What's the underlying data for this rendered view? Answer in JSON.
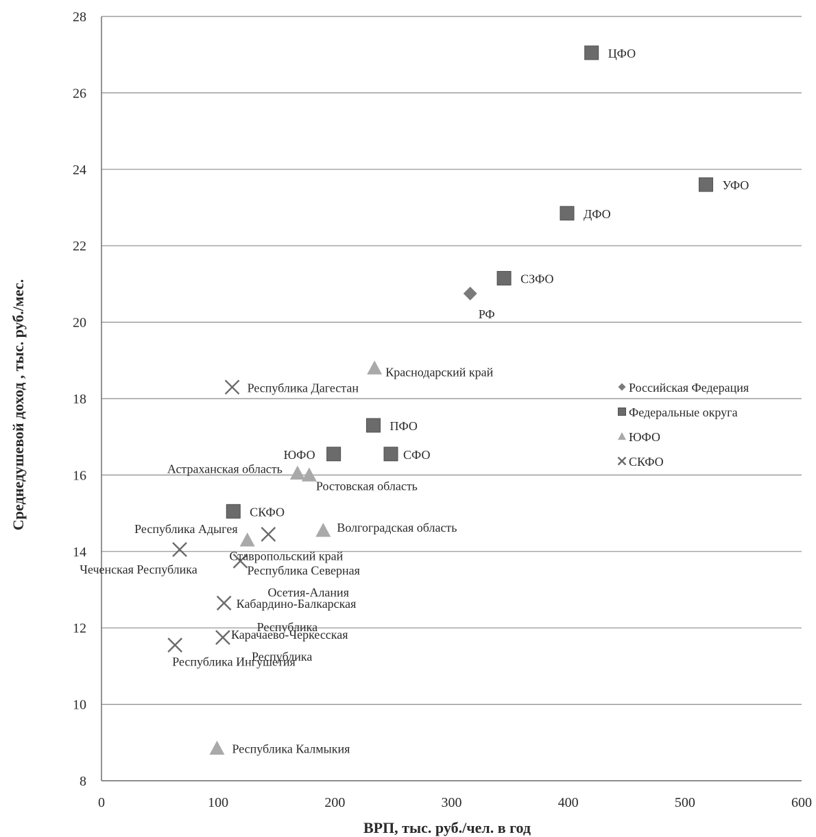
{
  "chart_data": {
    "type": "scatter",
    "xlabel": "ВРП, тыс. руб./чел.  в год",
    "ylabel": "Среднедушевой доход , тыс. руб./мес.",
    "xlim": [
      0,
      600
    ],
    "ylim": [
      8,
      28
    ],
    "x_ticks": [
      0,
      100,
      200,
      300,
      400,
      500,
      600
    ],
    "y_ticks": [
      8,
      10,
      12,
      14,
      16,
      18,
      20,
      22,
      24,
      26,
      28
    ],
    "grid": "horizontal",
    "legend_position": "right",
    "series": [
      {
        "name": "Российская Федерация",
        "marker": "diamond",
        "color": "#7a7a7a",
        "points": [
          {
            "label": "РФ",
            "x": 316,
            "y": 20.75
          }
        ]
      },
      {
        "name": "Федеральные округа",
        "marker": "square",
        "color": "#6b6b6b",
        "points": [
          {
            "label": "ЦФО",
            "x": 420,
            "y": 27.05
          },
          {
            "label": "УФО",
            "x": 518,
            "y": 23.6
          },
          {
            "label": "ДФО",
            "x": 399,
            "y": 22.85
          },
          {
            "label": "СЗФО",
            "x": 345,
            "y": 21.15
          },
          {
            "label": "ПФО",
            "x": 233,
            "y": 17.3
          },
          {
            "label": "СФО",
            "x": 248,
            "y": 16.55
          },
          {
            "label": "ЮФО",
            "x": 199,
            "y": 16.55
          },
          {
            "label": "СКФО",
            "x": 113,
            "y": 15.05
          }
        ]
      },
      {
        "name": "ЮФО",
        "marker": "triangle",
        "color": "#a9a9a9",
        "points": [
          {
            "label": "Краснодарский край",
            "x": 234,
            "y": 18.8
          },
          {
            "label": "Астраханская область",
            "x": 168,
            "y": 16.05
          },
          {
            "label": "Ростовская область",
            "x": 178,
            "y": 16.0
          },
          {
            "label": "Волгоградская область",
            "x": 190,
            "y": 14.55
          },
          {
            "label": "Республика Адыгея",
            "x": 125,
            "y": 14.3
          },
          {
            "label": "Республика Калмыкия",
            "x": 99,
            "y": 8.85
          }
        ]
      },
      {
        "name": "СКФО",
        "marker": "cross",
        "color": "#6b6b6b",
        "points": [
          {
            "label": "Республика Дагестан",
            "x": 112,
            "y": 18.3
          },
          {
            "label": "Ставропольский край",
            "x": 143,
            "y": 14.45
          },
          {
            "label": "Чеченская Республика",
            "x": 67,
            "y": 14.05
          },
          {
            "label": "Республика Северная Осетия-Алания",
            "x": 119,
            "y": 13.75
          },
          {
            "label": "Кабардино-Балкарская Республика",
            "x": 105,
            "y": 12.65
          },
          {
            "label": "Карачаево-Черкесская Республика",
            "x": 104,
            "y": 11.75
          },
          {
            "label": "Республика Ингушетия",
            "x": 63,
            "y": 11.55
          }
        ]
      }
    ]
  }
}
